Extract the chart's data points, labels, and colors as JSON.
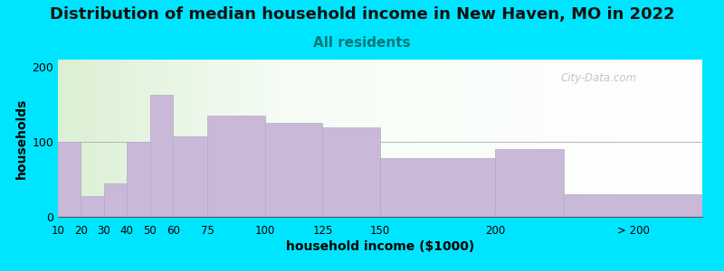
{
  "title": "Distribution of median household income in New Haven, MO in 2022",
  "subtitle": "All residents",
  "xlabel": "household income ($1000)",
  "ylabel": "households",
  "bar_color": "#c9b8d8",
  "bar_edgecolor": "#b8a8c8",
  "background_outer": "#00e5ff",
  "watermark": "City-Data.com",
  "title_fontsize": 13,
  "subtitle_fontsize": 11,
  "axis_label_fontsize": 10,
  "bin_edges": [
    10,
    20,
    30,
    40,
    50,
    60,
    75,
    100,
    125,
    150,
    200,
    230,
    290
  ],
  "tick_positions": [
    10,
    20,
    30,
    40,
    50,
    60,
    75,
    100,
    125,
    150,
    200,
    260
  ],
  "tick_labels": [
    "10",
    "20",
    "30",
    "40",
    "50",
    "60",
    "75",
    "100",
    "125",
    "150",
    "200",
    "> 200"
  ],
  "values": [
    100,
    28,
    45,
    100,
    163,
    107,
    135,
    125,
    120,
    78,
    90,
    30
  ],
  "ylim": [
    0,
    210
  ],
  "yticks": [
    0,
    100,
    200
  ]
}
